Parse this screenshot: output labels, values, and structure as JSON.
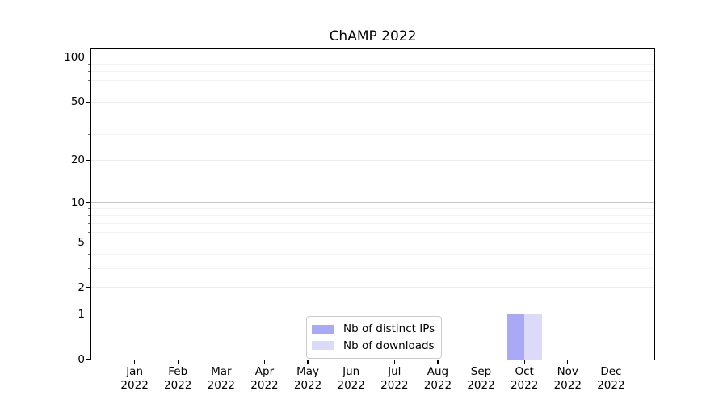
{
  "chart_data": {
    "type": "bar",
    "title": "ChAMP 2022",
    "categories": [
      "Jan 2022",
      "Feb 2022",
      "Mar 2022",
      "Apr 2022",
      "May 2022",
      "Jun 2022",
      "Jul 2022",
      "Aug 2022",
      "Sep 2022",
      "Oct 2022",
      "Nov 2022",
      "Dec 2022"
    ],
    "series": [
      {
        "name": "Nb of distinct IPs",
        "color": "#a9a9f5",
        "values": [
          0,
          0,
          0,
          0,
          0,
          0,
          0,
          0,
          0,
          1,
          0,
          0
        ]
      },
      {
        "name": "Nb of downloads",
        "color": "#dbdbf9",
        "values": [
          0,
          0,
          0,
          0,
          0,
          0,
          0,
          0,
          0,
          1,
          0,
          0
        ]
      }
    ],
    "xlabel": "",
    "ylabel": "",
    "yscale": "log1p",
    "ylim": [
      0,
      112
    ],
    "yticks": [
      0,
      1,
      2,
      5,
      10,
      20,
      50,
      100
    ],
    "yticks_minor": [
      3,
      4,
      6,
      7,
      8,
      9,
      30,
      40,
      60,
      70,
      80,
      90
    ],
    "grid": "horizontal",
    "legend": {
      "position": "inside-bottom-center",
      "entries": [
        "Nb of distinct IPs",
        "Nb of downloads"
      ]
    }
  },
  "colors": {
    "background": "#ffffff",
    "spine": "#000000",
    "grid_decade": "#c6c6c6",
    "grid_labeled": "#ececec",
    "grid_minor": "#f2f2f2",
    "text": "#000000",
    "legend_border": "#cccccc"
  }
}
